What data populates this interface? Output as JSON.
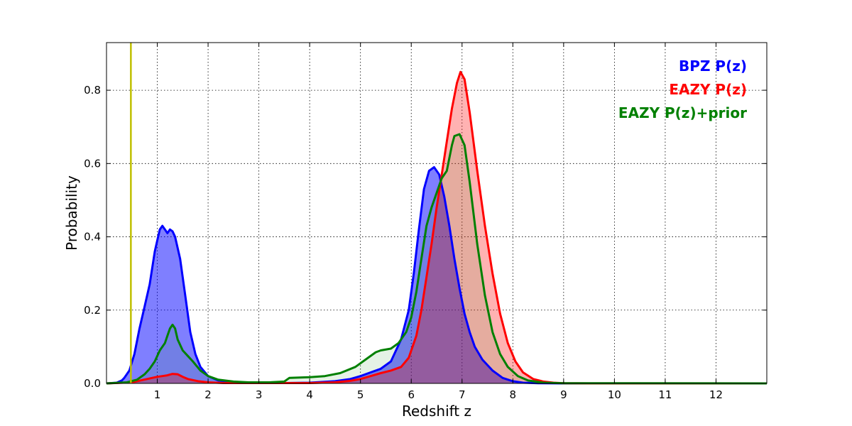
{
  "chart_data": {
    "type": "area",
    "xlabel": "Redshift z",
    "ylabel": "Probability",
    "xlim": [
      0,
      13
    ],
    "ylim": [
      0,
      0.93
    ],
    "xticks": [
      1,
      2,
      3,
      4,
      5,
      6,
      7,
      8,
      9,
      10,
      11,
      12
    ],
    "yticks": [
      0.0,
      0.2,
      0.4,
      0.6,
      0.8
    ],
    "grid": true,
    "legend_position": "top-right",
    "vertical_line": {
      "x": 0.48,
      "color": "#bfbf00"
    },
    "series": [
      {
        "name": "BPZ P(z)",
        "color": "#0000ff",
        "fill_color": "#0000ff",
        "x": [
          0,
          0.2,
          0.3,
          0.35,
          0.45,
          0.55,
          0.65,
          0.75,
          0.85,
          0.95,
          1.0,
          1.05,
          1.1,
          1.15,
          1.2,
          1.25,
          1.3,
          1.35,
          1.45,
          1.55,
          1.65,
          1.75,
          1.85,
          2.0,
          2.2,
          2.5,
          3.0,
          3.5,
          4.0,
          4.5,
          4.8,
          5.0,
          5.2,
          5.4,
          5.6,
          5.8,
          5.95,
          6.05,
          6.15,
          6.25,
          6.35,
          6.45,
          6.55,
          6.65,
          6.75,
          6.85,
          6.95,
          7.05,
          7.15,
          7.25,
          7.4,
          7.6,
          7.8,
          8.0,
          8.2,
          8.5,
          9.0,
          13.0
        ],
        "y": [
          0,
          0.002,
          0.008,
          0.015,
          0.035,
          0.08,
          0.15,
          0.21,
          0.27,
          0.36,
          0.39,
          0.42,
          0.43,
          0.42,
          0.41,
          0.42,
          0.415,
          0.4,
          0.34,
          0.24,
          0.14,
          0.08,
          0.045,
          0.02,
          0.008,
          0.003,
          0.001,
          0.001,
          0.002,
          0.006,
          0.012,
          0.02,
          0.03,
          0.04,
          0.06,
          0.12,
          0.2,
          0.3,
          0.42,
          0.53,
          0.58,
          0.59,
          0.57,
          0.51,
          0.43,
          0.34,
          0.26,
          0.19,
          0.14,
          0.1,
          0.065,
          0.035,
          0.015,
          0.006,
          0.002,
          0.0005,
          0,
          0
        ]
      },
      {
        "name": "EAZY P(z)",
        "color": "#ff0000",
        "fill_color": "#ff0000",
        "x": [
          0,
          0.5,
          0.8,
          1.0,
          1.1,
          1.2,
          1.3,
          1.4,
          1.5,
          1.6,
          1.8,
          2.0,
          2.3,
          2.7,
          3.0,
          3.5,
          4.0,
          4.5,
          4.8,
          5.0,
          5.2,
          5.4,
          5.6,
          5.8,
          5.95,
          6.1,
          6.2,
          6.3,
          6.4,
          6.5,
          6.6,
          6.7,
          6.8,
          6.9,
          6.97,
          7.05,
          7.15,
          7.3,
          7.45,
          7.6,
          7.75,
          7.9,
          8.05,
          8.2,
          8.4,
          8.6,
          8.8,
          9.0,
          9.5,
          13.0
        ],
        "y": [
          0,
          0.003,
          0.012,
          0.018,
          0.02,
          0.022,
          0.026,
          0.025,
          0.018,
          0.012,
          0.006,
          0.003,
          0.001,
          0.001,
          0.001,
          0.001,
          0.001,
          0.003,
          0.007,
          0.012,
          0.02,
          0.028,
          0.035,
          0.045,
          0.07,
          0.13,
          0.2,
          0.29,
          0.38,
          0.48,
          0.57,
          0.66,
          0.75,
          0.82,
          0.85,
          0.83,
          0.74,
          0.58,
          0.43,
          0.3,
          0.19,
          0.11,
          0.06,
          0.03,
          0.012,
          0.005,
          0.002,
          0.0005,
          0,
          0
        ]
      },
      {
        "name": "EAZY P(z)+prior",
        "color": "#008000",
        "fill_color": "#008000",
        "x": [
          0,
          0.4,
          0.6,
          0.75,
          0.85,
          0.95,
          1.05,
          1.15,
          1.2,
          1.25,
          1.3,
          1.35,
          1.4,
          1.5,
          1.6,
          1.7,
          1.85,
          2.0,
          2.2,
          2.5,
          2.8,
          3.2,
          3.5,
          3.55,
          3.6,
          3.8,
          4.0,
          4.3,
          4.6,
          4.9,
          5.1,
          5.3,
          5.4,
          5.6,
          5.75,
          5.9,
          6.0,
          6.1,
          6.2,
          6.3,
          6.4,
          6.5,
          6.6,
          6.7,
          6.8,
          6.85,
          6.95,
          7.05,
          7.15,
          7.3,
          7.45,
          7.6,
          7.75,
          7.9,
          8.1,
          8.3,
          8.6,
          9.0,
          13.0
        ],
        "y": [
          0,
          0.003,
          0.01,
          0.025,
          0.04,
          0.06,
          0.09,
          0.11,
          0.13,
          0.15,
          0.16,
          0.15,
          0.12,
          0.09,
          0.075,
          0.06,
          0.035,
          0.02,
          0.01,
          0.005,
          0.003,
          0.003,
          0.005,
          0.01,
          0.015,
          0.016,
          0.017,
          0.02,
          0.028,
          0.045,
          0.065,
          0.085,
          0.09,
          0.095,
          0.11,
          0.14,
          0.18,
          0.25,
          0.34,
          0.43,
          0.48,
          0.52,
          0.56,
          0.58,
          0.65,
          0.675,
          0.68,
          0.65,
          0.55,
          0.38,
          0.24,
          0.14,
          0.08,
          0.045,
          0.02,
          0.008,
          0.002,
          0.0005,
          0
        ]
      }
    ]
  }
}
